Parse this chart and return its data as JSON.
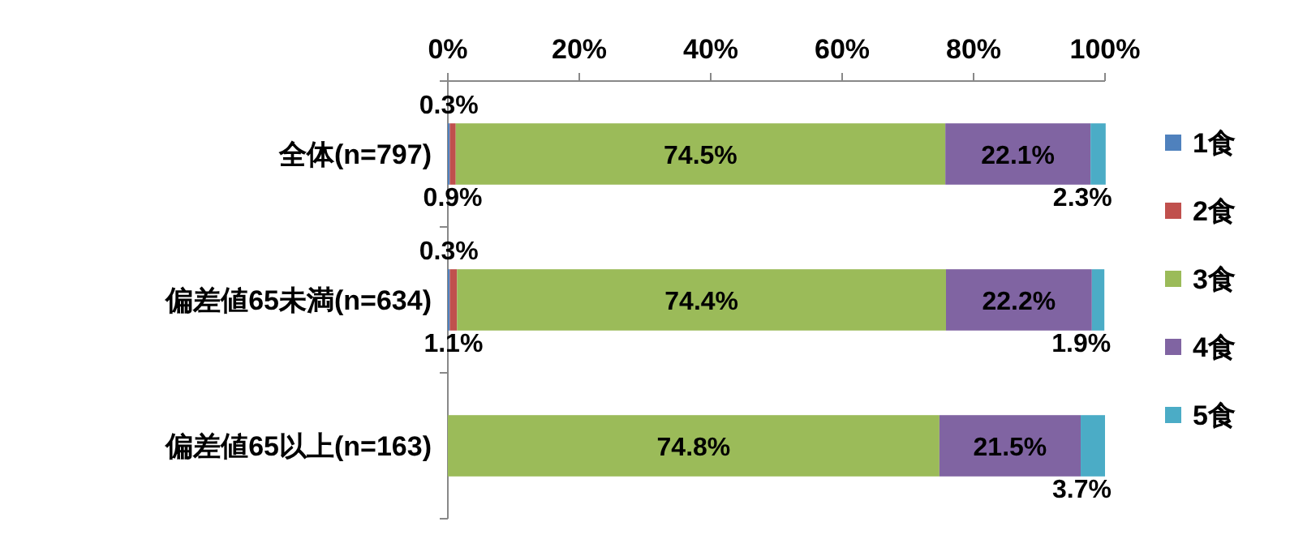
{
  "chart_data": {
    "type": "bar",
    "orientation": "horizontal",
    "stacked": true,
    "categories": [
      "全体(n=797)",
      "偏差値65未満(n=634)",
      "偏差値65以上(n=163)"
    ],
    "series": [
      {
        "name": "1食",
        "color": "#4f81bd",
        "values": [
          0.3,
          0.3,
          0
        ],
        "value_labels": [
          "0.3%",
          "0.3%",
          null
        ]
      },
      {
        "name": "2食",
        "color": "#c0504d",
        "values": [
          0.9,
          1.1,
          0
        ],
        "value_labels": [
          "0.9%",
          "1.1%",
          null
        ]
      },
      {
        "name": "3食",
        "color": "#9bbb59",
        "values": [
          74.5,
          74.4,
          74.8
        ],
        "value_labels": [
          "74.5%",
          "74.4%",
          "74.8%"
        ]
      },
      {
        "name": "4食",
        "color": "#8064a2",
        "values": [
          22.1,
          22.2,
          21.5
        ],
        "value_labels": [
          "22.1%",
          "22.2%",
          "21.5%"
        ]
      },
      {
        "name": "5食",
        "color": "#4bacc6",
        "values": [
          2.3,
          1.9,
          3.7
        ],
        "value_labels": [
          "2.3%",
          "1.9%",
          "3.7%"
        ]
      }
    ],
    "xlim": [
      0,
      100
    ],
    "xticks": [
      {
        "value": 0,
        "label": "0%"
      },
      {
        "value": 20,
        "label": "20%"
      },
      {
        "value": 40,
        "label": "40%"
      },
      {
        "value": 60,
        "label": "60%"
      },
      {
        "value": 80,
        "label": "80%"
      },
      {
        "value": 100,
        "label": "100%"
      }
    ],
    "legend": "right",
    "grid": false
  }
}
